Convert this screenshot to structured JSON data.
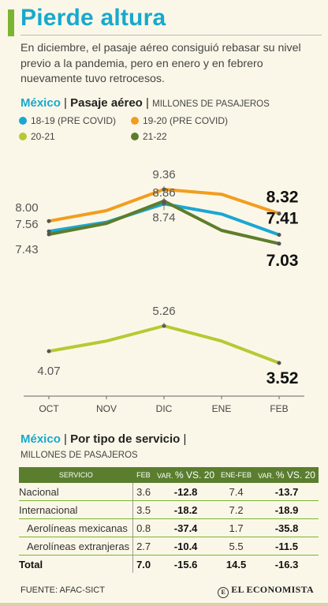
{
  "title": "Pierde altura",
  "subtitle": "En diciembre, el pasaje aéreo consiguió rebasar su nivel previo a la pandemia, pero en enero y en febrero nuevamente tuvo retrocesos.",
  "section1": {
    "country": "México",
    "name": "Pasaje aéreo",
    "unit": "MILLONES DE PASAJEROS"
  },
  "colors": {
    "accent": "#17a9cd",
    "green_bar": "#7bb432",
    "table_header": "#5a7e2e"
  },
  "chart_data": {
    "type": "line",
    "categories": [
      "OCT",
      "NOV",
      "DIC",
      "ENE",
      "FEB"
    ],
    "series": [
      {
        "name": "18-19 (PRE COVID)",
        "color": "#1aa7d3",
        "values": [
          7.56,
          7.95,
          8.74,
          8.3,
          7.41
        ]
      },
      {
        "name": "19-20 (PRE COVID)",
        "color": "#f29d1f",
        "values": [
          8.0,
          8.45,
          9.36,
          9.15,
          8.32
        ]
      },
      {
        "name": "20-21",
        "color": "#b7c933",
        "values": [
          4.07,
          4.55,
          5.26,
          4.55,
          3.52
        ]
      },
      {
        "name": "21-22",
        "color": "#5e7d2c",
        "values": [
          7.43,
          7.9,
          8.86,
          7.6,
          7.03
        ]
      }
    ],
    "labels": [
      {
        "series": 1,
        "index": 0,
        "text": "8.00",
        "bold": false
      },
      {
        "series": 0,
        "index": 0,
        "text": "7.56",
        "bold": false
      },
      {
        "series": 3,
        "index": 0,
        "text": "7.43",
        "bold": false
      },
      {
        "series": 1,
        "index": 2,
        "text": "9.36",
        "bold": false
      },
      {
        "series": 3,
        "index": 2,
        "text": "8.86",
        "bold": false
      },
      {
        "series": 0,
        "index": 2,
        "text": "8.74",
        "bold": false
      },
      {
        "series": 1,
        "index": 4,
        "text": "8.32",
        "bold": true
      },
      {
        "series": 0,
        "index": 4,
        "text": "7.41",
        "bold": true
      },
      {
        "series": 3,
        "index": 4,
        "text": "7.03",
        "bold": true
      },
      {
        "series": 2,
        "index": 2,
        "text": "5.26",
        "bold": false
      },
      {
        "series": 2,
        "index": 0,
        "text": "4.07",
        "bold": false
      },
      {
        "series": 2,
        "index": 4,
        "text": "3.52",
        "bold": true
      }
    ]
  },
  "section2": {
    "country": "México",
    "name": "Por tipo de servicio",
    "unit": "MILLONES DE PASAJEROS"
  },
  "table": {
    "headers": {
      "servicio": "SERVICIO",
      "feb": "FEB",
      "var1_small": "VAR.",
      "var1_big": "% VS. 20",
      "enefeb": "ENE-FEB",
      "var2_small": "VAR.",
      "var2_big": "% VS. 20"
    },
    "rows": [
      {
        "name": "Nacional",
        "feb": "3.6",
        "var1": "-12.8",
        "enefeb": "7.4",
        "var2": "-13.7"
      },
      {
        "name": "Internacional",
        "feb": "3.5",
        "var1": "-18.2",
        "enefeb": "7.2",
        "var2": "-18.9"
      },
      {
        "name": "Aerolíneas mexicanas",
        "feb": "0.8",
        "var1": "-37.4",
        "enefeb": "1.7",
        "var2": "-35.8"
      },
      {
        "name": "Aerolíneas extranjeras",
        "feb": "2.7",
        "var1": "-10.4",
        "enefeb": "5.5",
        "var2": "-11.5"
      },
      {
        "name": "Total",
        "feb": "7.0",
        "var1": "-15.6",
        "enefeb": "14.5",
        "var2": "-16.3"
      }
    ]
  },
  "source": "FUENTE: AFAC-SICT",
  "brand": "EL ECONOMISTA"
}
